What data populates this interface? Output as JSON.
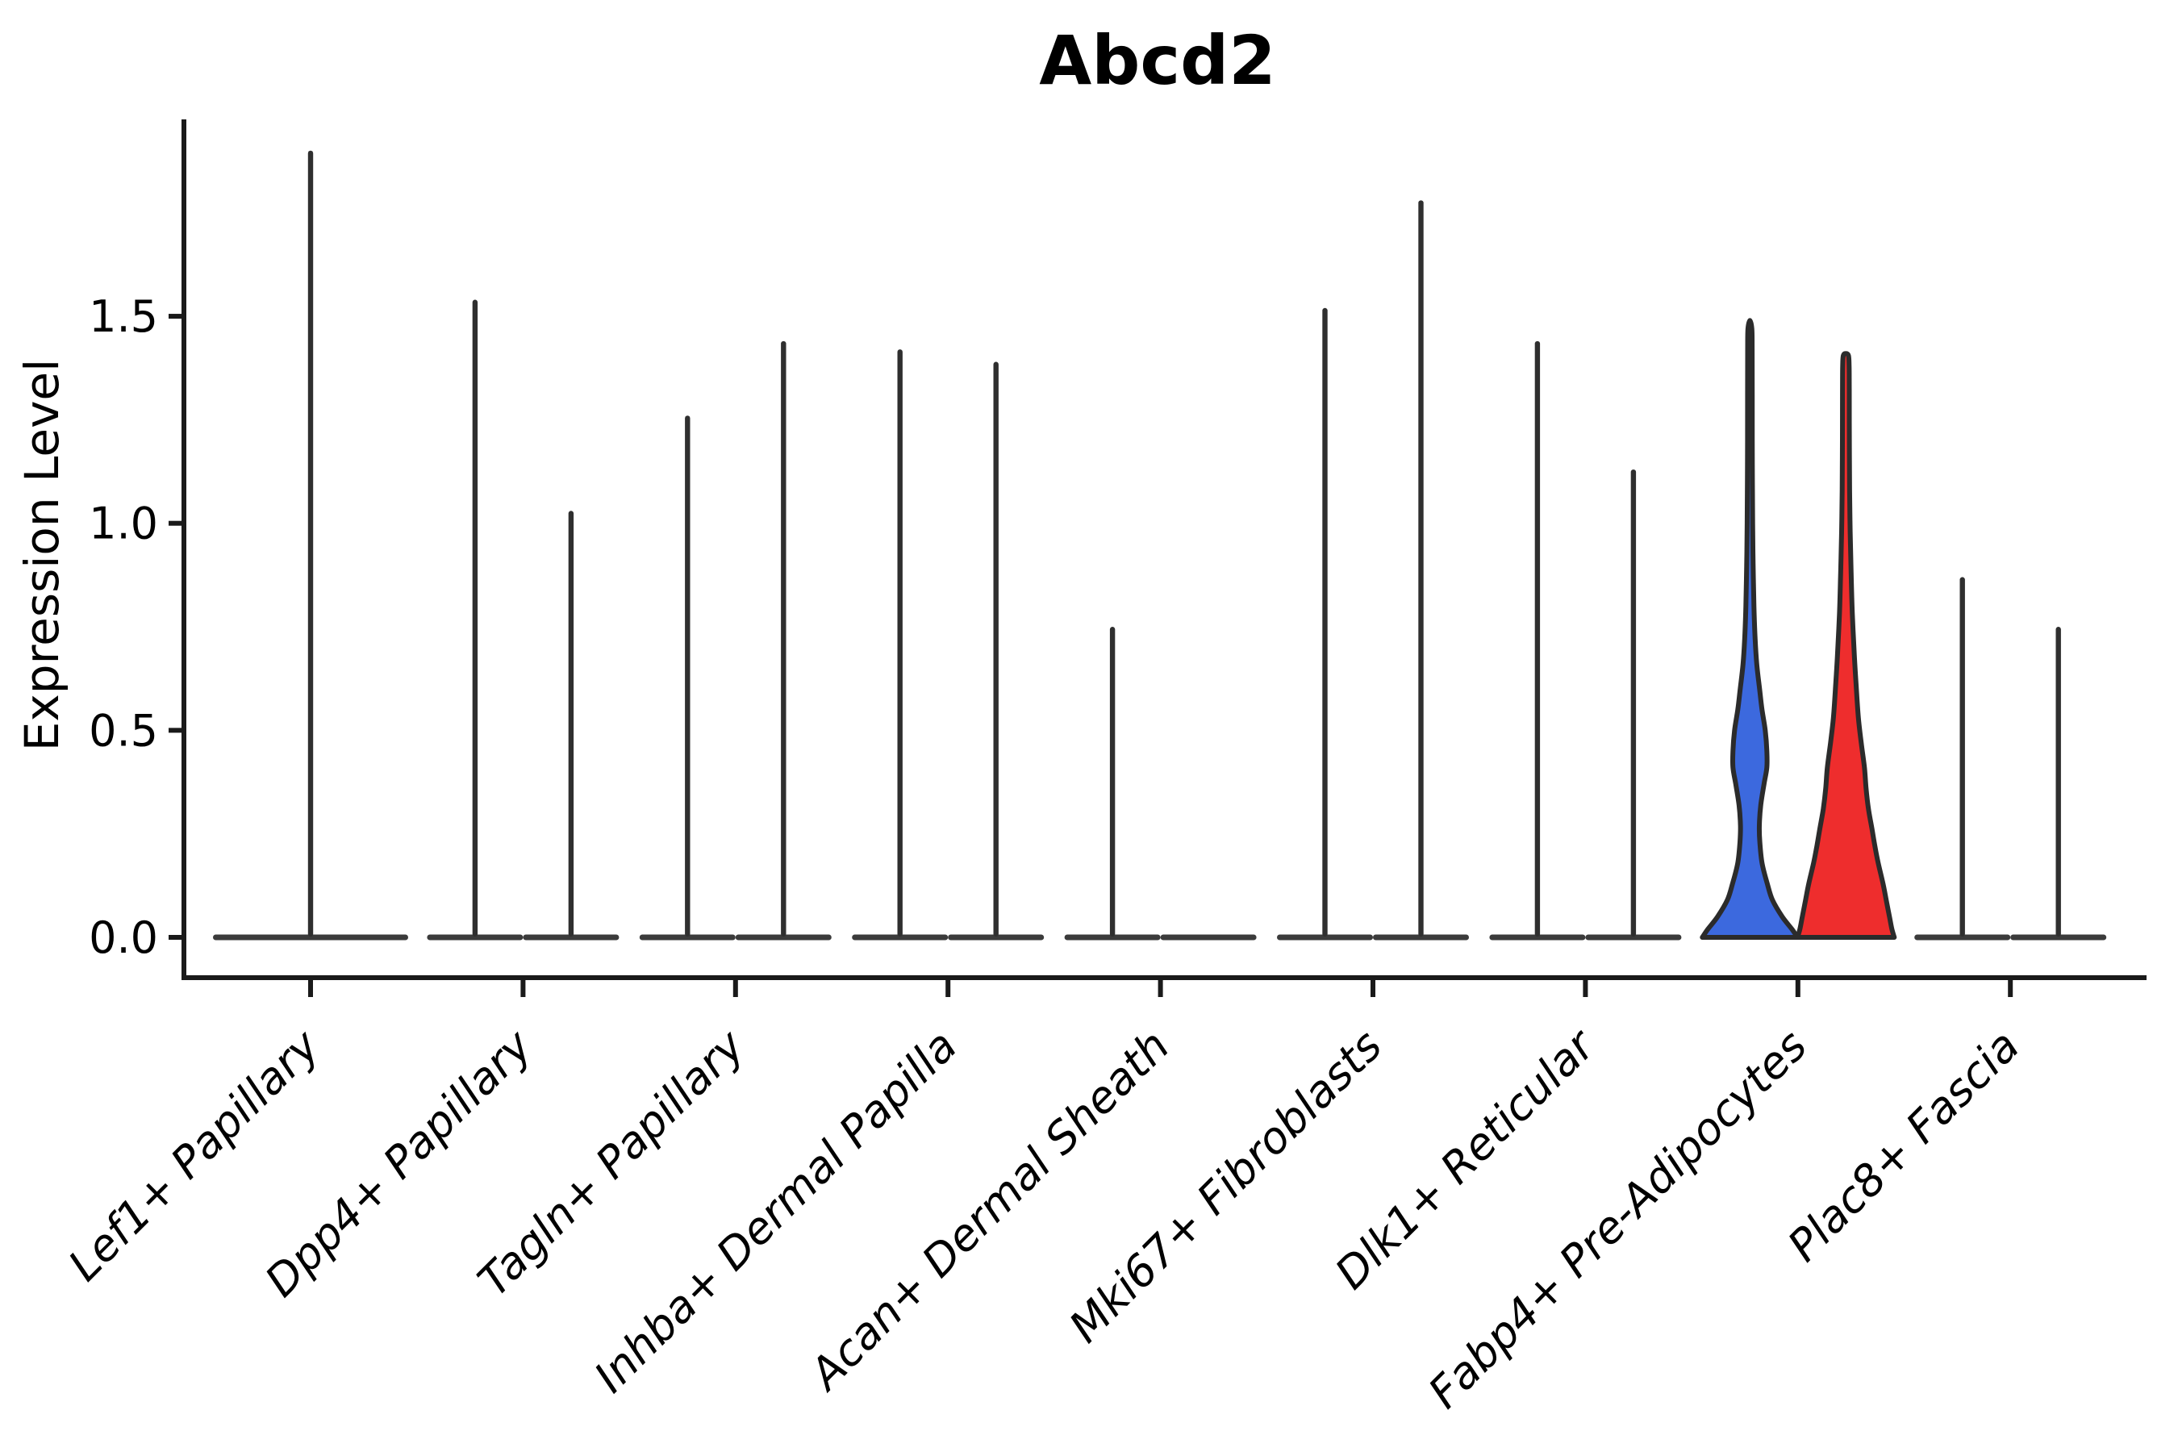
{
  "chart_data": {
    "type": "violin",
    "title": "Abcd2",
    "ylabel": "Expression Level",
    "xlabel": "",
    "ytick_labels": [
      "0.0",
      "0.5",
      "1.0",
      "1.5"
    ],
    "ytick_values": [
      0,
      0.5,
      1.0,
      1.5
    ],
    "ylim": [
      -0.09,
      1.97
    ],
    "grid": false,
    "legend": "none",
    "split_violins_per_category": 2,
    "colors": {
      "highlight_left_fill": "#3c69de",
      "highlight_right_fill": "#ee2d2d",
      "violin_outline": "#2b2b2b",
      "spike_line": "#2f2f2f",
      "baseline_bar": "#3b3b3b",
      "axis": "#1a1a1a",
      "text": "#000000",
      "background": "#ffffff"
    },
    "categories": [
      "Lef1+ Papillary",
      "Dpp4+ Papillary",
      "Tagln+ Papillary",
      "Inhba+ Dermal Papilla",
      "Acan+ Dermal Sheath",
      "Mki67+ Fibroblasts",
      "Dlk1+ Reticular",
      "Fabp4+ Pre-Adipocytes",
      "Plac8+ Fascia"
    ],
    "violins": [
      {
        "category": "Lef1+ Papillary",
        "parts": [
          {
            "pos": "full",
            "max": 1.9,
            "style": "line"
          }
        ]
      },
      {
        "category": "Dpp4+ Papillary",
        "parts": [
          {
            "pos": "left",
            "max": 1.54,
            "style": "line"
          },
          {
            "pos": "right",
            "max": 1.03,
            "style": "line"
          }
        ]
      },
      {
        "category": "Tagln+ Papillary",
        "parts": [
          {
            "pos": "left",
            "max": 1.26,
            "style": "line"
          },
          {
            "pos": "right",
            "max": 1.44,
            "style": "line"
          }
        ]
      },
      {
        "category": "Inhba+ Dermal Papilla",
        "parts": [
          {
            "pos": "left",
            "max": 1.42,
            "style": "line"
          },
          {
            "pos": "right",
            "max": 1.39,
            "style": "line"
          }
        ]
      },
      {
        "category": "Acan+ Dermal Sheath",
        "parts": [
          {
            "pos": "left",
            "max": 0.75,
            "style": "line"
          },
          {
            "pos": "right",
            "max": 0.0,
            "style": "line"
          }
        ]
      },
      {
        "category": "Mki67+ Fibroblasts",
        "parts": [
          {
            "pos": "left",
            "max": 1.52,
            "style": "line"
          },
          {
            "pos": "right",
            "max": 1.78,
            "style": "line"
          }
        ]
      },
      {
        "category": "Dlk1+ Reticular",
        "parts": [
          {
            "pos": "left",
            "max": 1.44,
            "style": "line"
          },
          {
            "pos": "right",
            "max": 1.13,
            "style": "line"
          }
        ]
      },
      {
        "category": "Fabp4+ Pre-Adipocytes",
        "parts": [
          {
            "pos": "left",
            "max": 1.49,
            "style": "filled",
            "fill": "#3c69de",
            "profile": [
              [
                0,
                59
              ],
              [
                0.02,
                52
              ],
              [
                0.05,
                40
              ],
              [
                0.09,
                28
              ],
              [
                0.13,
                21.5
              ],
              [
                0.18,
                15
              ],
              [
                0.23,
                12.3
              ],
              [
                0.27,
                11.7
              ],
              [
                0.32,
                13.5
              ],
              [
                0.37,
                17.5
              ],
              [
                0.41,
                21
              ],
              [
                0.45,
                21
              ],
              [
                0.5,
                19
              ],
              [
                0.55,
                15
              ],
              [
                0.6,
                12
              ],
              [
                0.66,
                8.5
              ],
              [
                0.72,
                6.5
              ],
              [
                0.8,
                5
              ],
              [
                0.9,
                4
              ],
              [
                1.0,
                3.4
              ],
              [
                1.15,
                3
              ],
              [
                1.3,
                2.9
              ],
              [
                1.42,
                2.8
              ],
              [
                1.47,
                2.4
              ],
              [
                1.49,
                0
              ]
            ]
          },
          {
            "pos": "right",
            "max": 1.41,
            "style": "filled",
            "fill": "#ee2d2d",
            "profile": [
              [
                0,
                60
              ],
              [
                0.02,
                57
              ],
              [
                0.05,
                54
              ],
              [
                0.09,
                50
              ],
              [
                0.13,
                46
              ],
              [
                0.18,
                40
              ],
              [
                0.22,
                36
              ],
              [
                0.26,
                32.5
              ],
              [
                0.31,
                28
              ],
              [
                0.36,
                25
              ],
              [
                0.41,
                23
              ],
              [
                0.47,
                19
              ],
              [
                0.53,
                15.5
              ],
              [
                0.6,
                13
              ],
              [
                0.68,
                10.5
              ],
              [
                0.78,
                8
              ],
              [
                0.88,
                6.5
              ],
              [
                0.98,
                5.3
              ],
              [
                1.08,
                4.6
              ],
              [
                1.2,
                4.3
              ],
              [
                1.32,
                4.2
              ],
              [
                1.38,
                4.0
              ],
              [
                1.405,
                3.2
              ],
              [
                1.41,
                0
              ]
            ]
          }
        ]
      },
      {
        "category": "Plac8+ Fascia",
        "parts": [
          {
            "pos": "left",
            "max": 0.87,
            "style": "line"
          },
          {
            "pos": "right",
            "max": 0.75,
            "style": "line"
          }
        ]
      }
    ]
  }
}
